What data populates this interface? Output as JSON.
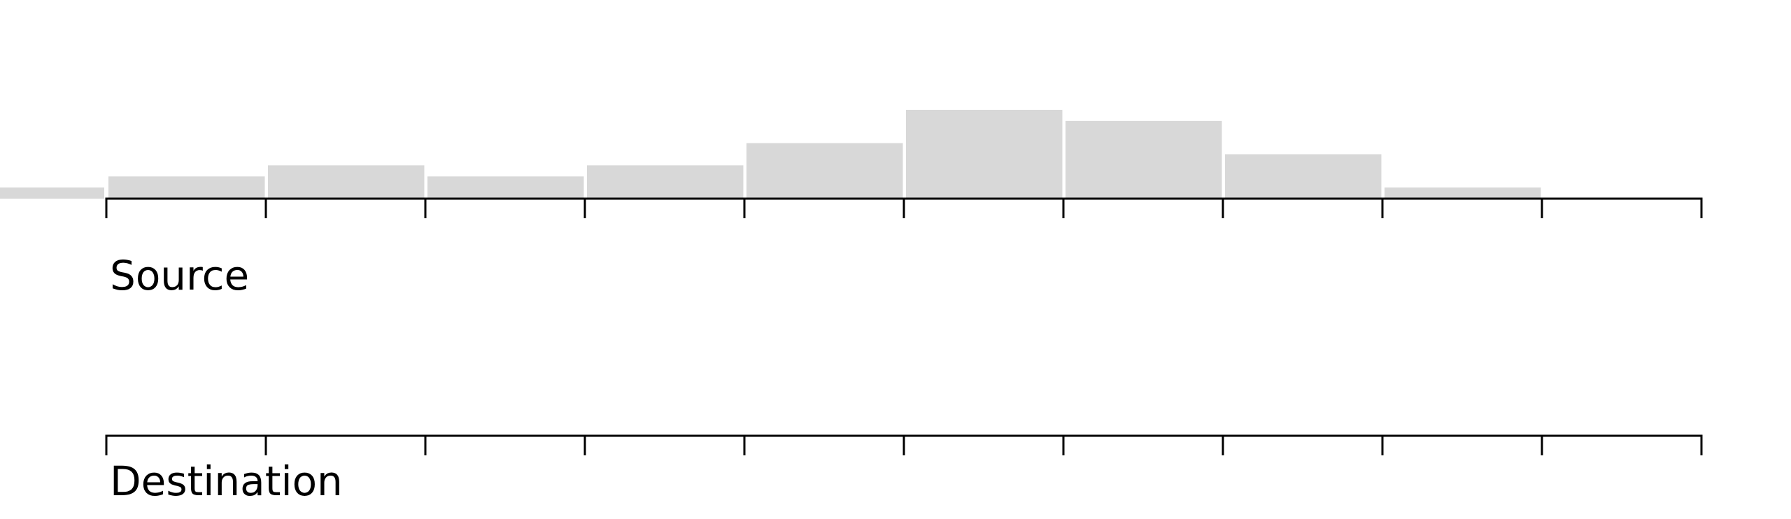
{
  "chart_data": {
    "type": "bar",
    "title": "",
    "grid": false,
    "legend": false,
    "colors": {
      "bar": "#d8d8d8",
      "axis": "#000000",
      "background": "#ffffff"
    },
    "xlim": [
      -1,
      10
    ],
    "ylim": [
      0,
      8
    ],
    "tick_positions": [
      0,
      1,
      2,
      3,
      4,
      5,
      6,
      7,
      8,
      9,
      10
    ],
    "bins": [
      {
        "start": -1,
        "end": 0,
        "value": 1
      },
      {
        "start": 0,
        "end": 1,
        "value": 2
      },
      {
        "start": 1,
        "end": 2,
        "value": 3
      },
      {
        "start": 2,
        "end": 3,
        "value": 2
      },
      {
        "start": 3,
        "end": 4,
        "value": 3
      },
      {
        "start": 4,
        "end": 5,
        "value": 5
      },
      {
        "start": 5,
        "end": 6,
        "value": 8
      },
      {
        "start": 6,
        "end": 7,
        "value": 7
      },
      {
        "start": 7,
        "end": 8,
        "value": 4
      },
      {
        "start": 8,
        "end": 9,
        "value": 1
      }
    ],
    "axes": [
      {
        "id": "source",
        "label": "Source"
      },
      {
        "id": "destination",
        "label": "Destination"
      }
    ]
  }
}
